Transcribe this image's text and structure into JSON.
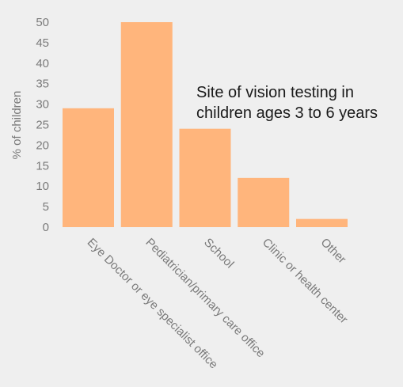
{
  "chart_data": {
    "type": "bar",
    "title_lines": [
      "Site of vision testing in",
      "children ages 3 to 6 years"
    ],
    "ylabel": "% of children",
    "xlabel": "",
    "ylim": [
      0,
      50
    ],
    "yticks": [
      0,
      5,
      10,
      15,
      20,
      25,
      30,
      35,
      40,
      45,
      50
    ],
    "categories": [
      "Eye Doctor or eye specialist office",
      "Pediatrician/primary care office",
      "School",
      "Clinic or health center",
      "Other"
    ],
    "values": [
      29,
      50,
      24,
      12,
      2
    ],
    "bar_color": "#ffb57c",
    "grid": false
  }
}
